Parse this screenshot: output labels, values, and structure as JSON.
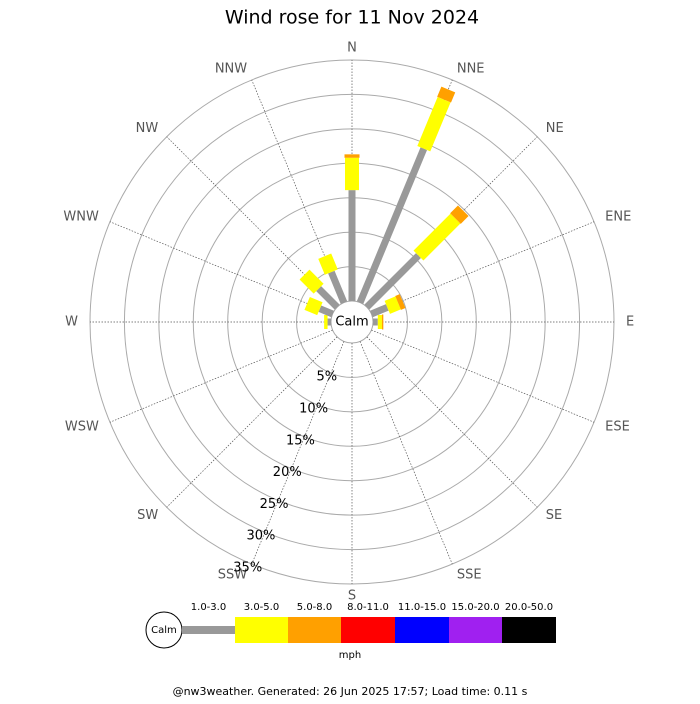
{
  "chart_data": {
    "type": "wind_rose",
    "title": "Wind rose for 11 Nov 2024",
    "directions": [
      "N",
      "NNE",
      "NE",
      "ENE",
      "E",
      "ESE",
      "SE",
      "SSE",
      "S",
      "SSW",
      "SW",
      "WSW",
      "W",
      "WNW",
      "NW",
      "NNW"
    ],
    "calm_label": "Calm",
    "rlim": [
      0,
      35
    ],
    "rticks": [
      {
        "value": 5,
        "label": "5%"
      },
      {
        "value": 10,
        "label": "10%"
      },
      {
        "value": 15,
        "label": "15%"
      },
      {
        "value": 20,
        "label": "20%"
      },
      {
        "value": 25,
        "label": "25%"
      },
      {
        "value": 30,
        "label": "30%"
      },
      {
        "value": 35,
        "label": "35%"
      }
    ],
    "series": [
      {
        "name": "1.0-3.0",
        "color": "#999999",
        "values": [
          16.1,
          24.2,
          10.6,
          2.5,
          0.7,
          0,
          0,
          0,
          0,
          0,
          0,
          0,
          0.5,
          2.0,
          3.8,
          4.8
        ]
      },
      {
        "name": "3.0-5.0",
        "color": "#ffff00",
        "values": [
          4.7,
          7.7,
          7.6,
          1.7,
          0.6,
          0,
          0,
          0,
          0,
          0,
          0,
          0,
          0.5,
          2.0,
          2.9,
          2.5
        ]
      },
      {
        "name": "5.0-8.0",
        "color": "#ffa000",
        "values": [
          0.5,
          1.6,
          1.6,
          0.7,
          0.2,
          0,
          0,
          0,
          0,
          0,
          0,
          0,
          0,
          0,
          0,
          0
        ]
      },
      {
        "name": "8.0-11.0",
        "color": "#ff0000",
        "values": [
          0,
          0,
          0,
          0,
          0,
          0,
          0,
          0,
          0,
          0,
          0,
          0,
          0,
          0,
          0,
          0
        ]
      },
      {
        "name": "11.0-15.0",
        "color": "#0000ff",
        "values": [
          0,
          0,
          0,
          0,
          0,
          0,
          0,
          0,
          0,
          0,
          0,
          0,
          0,
          0,
          0,
          0
        ]
      },
      {
        "name": "15.0-20.0",
        "color": "#a020f0",
        "values": [
          0,
          0,
          0,
          0,
          0,
          0,
          0,
          0,
          0,
          0,
          0,
          0,
          0,
          0,
          0,
          0
        ]
      },
      {
        "name": "20.0-50.0",
        "color": "#000000",
        "values": [
          0,
          0,
          0,
          0,
          0,
          0,
          0,
          0,
          0,
          0,
          0,
          0,
          0,
          0,
          0,
          0
        ]
      }
    ],
    "legend_unit": "mph",
    "footer": "@nw3weather. Generated: 26 Jun 2025 17:57; Load time: 0.11 s"
  }
}
